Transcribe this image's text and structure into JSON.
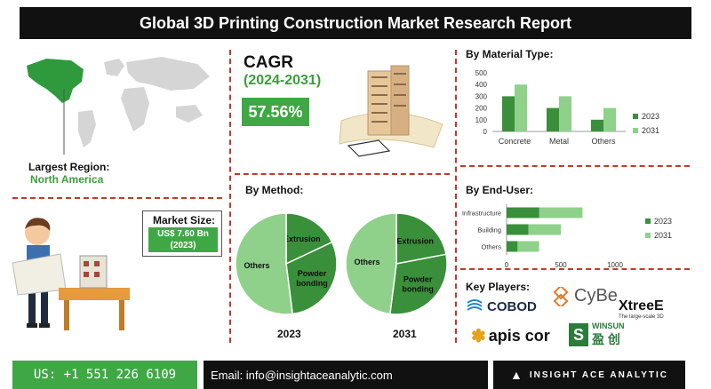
{
  "title": "Global 3D Printing Construction Market Research Report",
  "region": {
    "label": "Largest Region:",
    "value": "North America"
  },
  "cagr": {
    "label": "CAGR",
    "period": "(2024-2031)",
    "value": "57.56%"
  },
  "market_size": {
    "label": "Market Size:",
    "value": "US$ 7.60 Bn",
    "year": "(2023)"
  },
  "method": {
    "heading": "By Method:"
  },
  "material": {
    "heading": "By Material Type:"
  },
  "end_user": {
    "heading": "By End-User:"
  },
  "key_players": {
    "heading": "Key Players:",
    "logos": [
      "COBOD",
      "CyBe",
      "XtreeE",
      "The large-scale 3D",
      "apis cor",
      "WINSUN",
      "盈 创"
    ]
  },
  "footer": {
    "phone": "US: +1 551 226 6109",
    "email": "Email: info@insightaceanalytic.com",
    "brand": "INSIGHT ACE ANALYTIC"
  },
  "colors": {
    "dark_green": "#3a8f3a",
    "light_green": "#8fd18a",
    "title_bg": "#111111",
    "divider": "#c0392b"
  },
  "chart_data": [
    {
      "type": "bar",
      "title": "By Material Type:",
      "categories": [
        "Concrete",
        "Metal",
        "Others"
      ],
      "series": [
        {
          "name": "2023",
          "values": [
            300,
            200,
            100
          ],
          "color": "#3a8f3a"
        },
        {
          "name": "2031",
          "values": [
            400,
            300,
            200
          ],
          "color": "#8fd18a"
        }
      ],
      "ylim": [
        0,
        500
      ],
      "yticks": [
        "0",
        "100",
        "200",
        "300",
        "400",
        "500"
      ],
      "legend": "right"
    },
    {
      "type": "bar",
      "orientation": "horizontal",
      "title": "By End-User:",
      "categories": [
        "Infrastructure",
        "Building",
        "Others"
      ],
      "series": [
        {
          "name": "2023",
          "values": [
            300,
            200,
            100
          ],
          "color": "#3a8f3a"
        },
        {
          "name": "2031",
          "values": [
            700,
            500,
            300
          ],
          "color": "#8fd18a"
        }
      ],
      "xlim": [
        0,
        1000
      ],
      "xticks": [
        "0",
        "500",
        "1000"
      ],
      "legend": "right"
    },
    {
      "type": "pie",
      "title": "2023",
      "slices": [
        {
          "label": "Extrusion",
          "value": 18,
          "color": "#3a8f3a"
        },
        {
          "label": "Powder bonding",
          "value": 30,
          "color": "#3a8f3a"
        },
        {
          "label": "Others",
          "value": 52,
          "color": "#8fd18a"
        }
      ]
    },
    {
      "type": "pie",
      "title": "2031",
      "slices": [
        {
          "label": "Extrusion",
          "value": 22,
          "color": "#3a8f3a"
        },
        {
          "label": "Powder bonding",
          "value": 30,
          "color": "#3a8f3a"
        },
        {
          "label": "Others",
          "value": 48,
          "color": "#8fd18a"
        }
      ]
    }
  ]
}
